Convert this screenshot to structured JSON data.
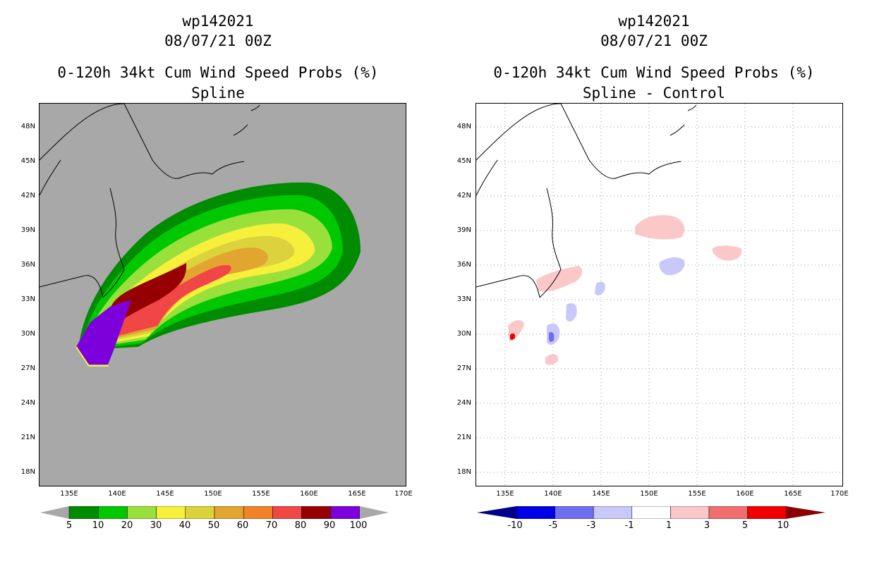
{
  "left": {
    "title": {
      "storm": "wp142021",
      "time": "08/07/21 00Z",
      "product": "0-120h 34kt Cum Wind Speed Probs (%)",
      "subtitle": "Spline"
    },
    "lat_labels": [
      "48N",
      "45N",
      "42N",
      "39N",
      "36N",
      "33N",
      "30N",
      "27N",
      "24N",
      "21N",
      "18N"
    ],
    "lon_labels": [
      "135E",
      "140E",
      "145E",
      "150E",
      "155E",
      "160E",
      "165E",
      "170E"
    ],
    "colorbar": {
      "colors": [
        "#008b00",
        "#00c800",
        "#99e03c",
        "#f6f03c",
        "#dcd23c",
        "#e1a530",
        "#f08228",
        "#f04646",
        "#960000",
        "#7d00dc"
      ],
      "labels": [
        "5",
        "10",
        "20",
        "30",
        "40",
        "50",
        "60",
        "70",
        "80",
        "90",
        "100"
      ]
    }
  },
  "right": {
    "title": {
      "storm": "wp142021",
      "time": "08/07/21 00Z",
      "product": "0-120h 34kt Cum Wind Speed Probs (%)",
      "subtitle": "Spline - Control"
    },
    "lat_labels": [
      "48N",
      "45N",
      "42N",
      "39N",
      "36N",
      "33N",
      "30N",
      "27N",
      "24N",
      "21N",
      "18N"
    ],
    "lon_labels": [
      "135E",
      "140E",
      "145E",
      "150E",
      "155E",
      "160E",
      "165E",
      "170E"
    ],
    "colorbar": {
      "colors": [
        "#00008b",
        "#0000e6",
        "#6e6ef0",
        "#c8c8fa",
        "#ffffff",
        "#fac8c8",
        "#f06e6e",
        "#f00000",
        "#8b0000"
      ],
      "labels": [
        "-10",
        "-5",
        "-3",
        "-1",
        "1",
        "3",
        "5",
        "10"
      ]
    }
  }
}
